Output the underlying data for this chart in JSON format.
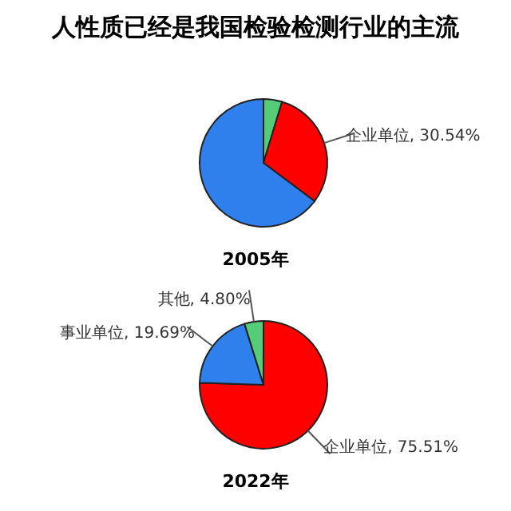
{
  "chart_data": [
    {
      "type": "pie",
      "title": "人性质已经是我国检验检测行业的主流",
      "xlabel": "2005年",
      "categories": [
        null,
        "企业单位",
        null
      ],
      "values": [
        4.7,
        30.54,
        64.76
      ],
      "colors": [
        "#55cc77",
        "#ff0000",
        "#2f80ed"
      ],
      "value_labels": [
        null,
        "30.54%",
        null
      ]
    },
    {
      "type": "pie",
      "xlabel": "2022年",
      "categories": [
        "企业单位",
        "事业单位",
        "其他"
      ],
      "values": [
        75.51,
        19.69,
        4.8
      ],
      "colors": [
        "#ff0000",
        "#2f80ed",
        "#55cc77"
      ],
      "value_labels": [
        "75.51%",
        "19.69%",
        "4.80%"
      ]
    }
  ]
}
